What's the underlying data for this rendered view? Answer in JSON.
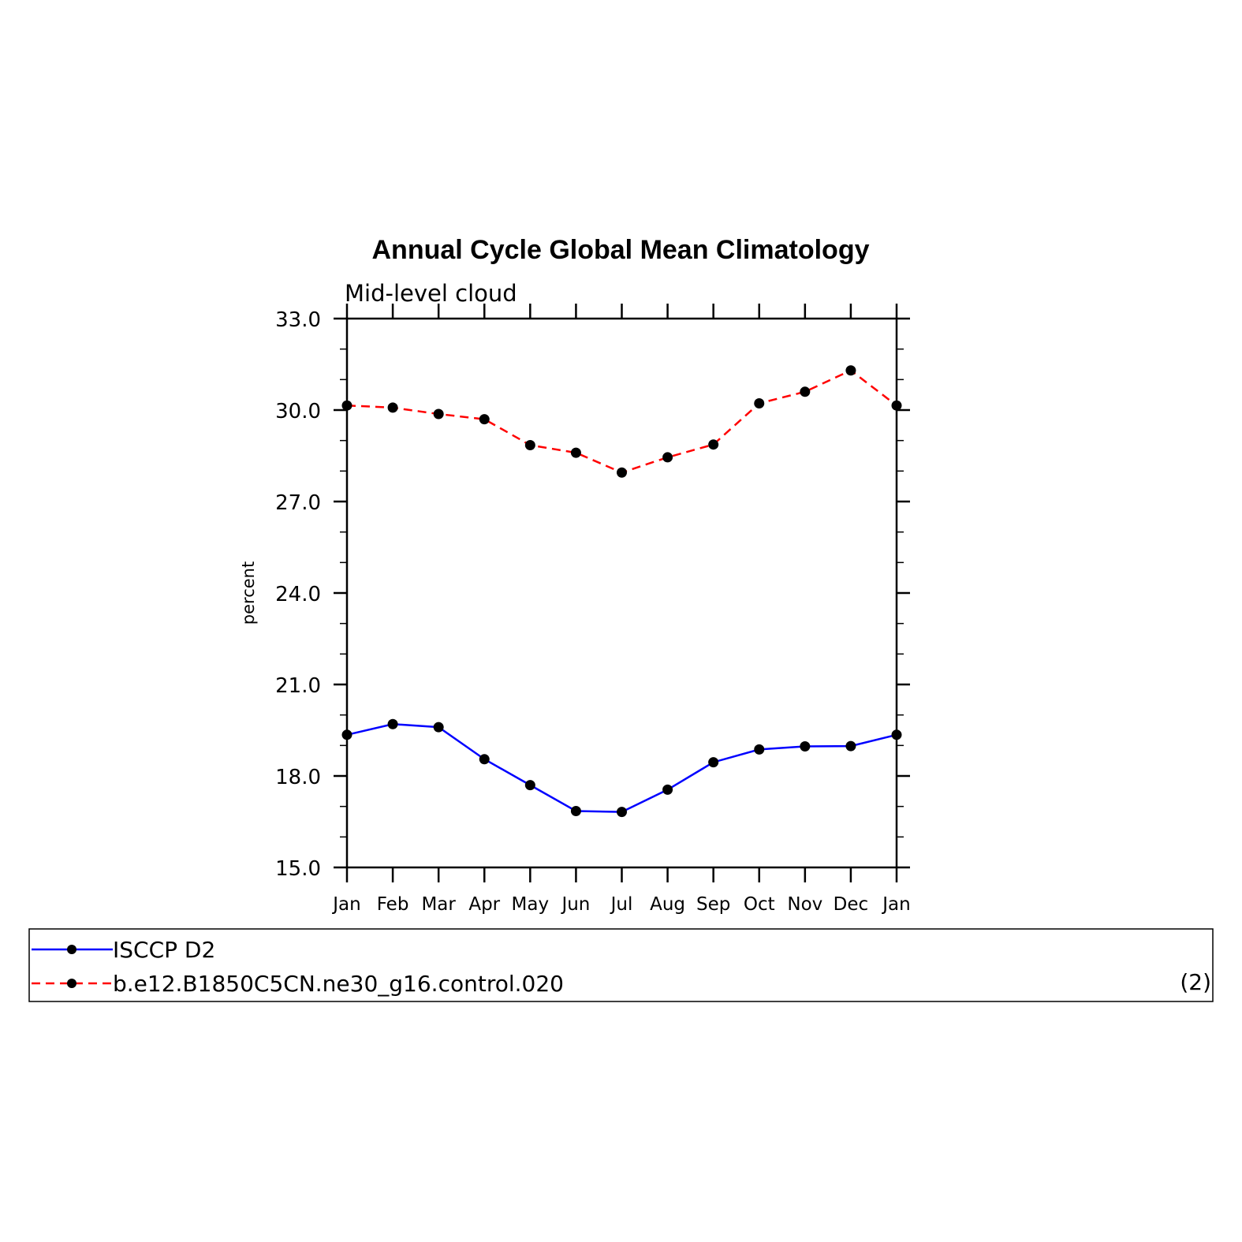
{
  "chart_data": {
    "type": "line",
    "title": "Annual Cycle Global Mean Climatology",
    "subtitle": "Mid-level cloud",
    "xlabel": "",
    "ylabel": "percent",
    "ylim": [
      15.0,
      33.0
    ],
    "yticks": [
      "15.0",
      "18.0",
      "21.0",
      "24.0",
      "27.0",
      "30.0",
      "33.0"
    ],
    "categories": [
      "Jan",
      "Feb",
      "Mar",
      "Apr",
      "May",
      "Jun",
      "Jul",
      "Aug",
      "Sep",
      "Oct",
      "Nov",
      "Dec",
      "Jan"
    ],
    "series": [
      {
        "name": "ISCCP D2",
        "color": "#0000ff",
        "style": "solid",
        "values": [
          19.35,
          19.7,
          19.6,
          18.55,
          17.7,
          16.85,
          16.82,
          17.55,
          18.45,
          18.87,
          18.97,
          18.98,
          19.35
        ]
      },
      {
        "name": "b.e12.B1850C5CN.ne30_g16.control.020",
        "color": "#ff0000",
        "style": "dashed",
        "values": [
          30.15,
          30.08,
          29.87,
          29.7,
          28.85,
          28.6,
          27.95,
          28.45,
          28.87,
          30.22,
          30.6,
          31.3,
          30.15
        ]
      }
    ]
  },
  "legend": {
    "note": "(2)"
  }
}
